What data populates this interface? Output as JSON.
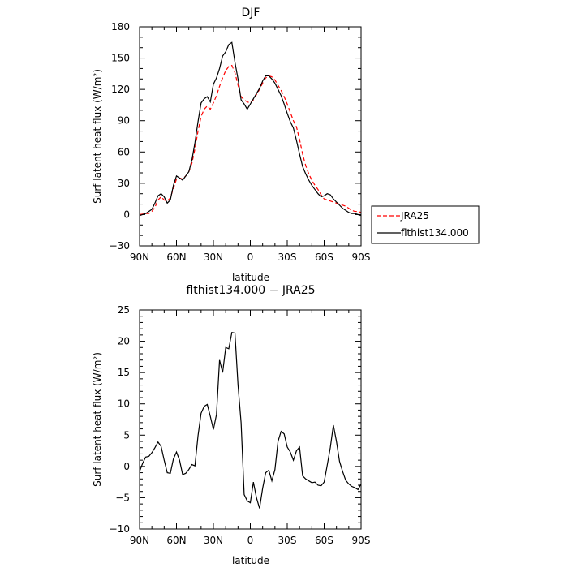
{
  "chart_data": [
    {
      "type": "line",
      "title": "DJF",
      "xlabel": "latitude",
      "ylabel": "Surf latent heat flux (W/m²)",
      "xlim": [
        90,
        -90
      ],
      "ylim": [
        -30,
        180
      ],
      "xticks": [
        90,
        60,
        30,
        0,
        -30,
        -60,
        -90
      ],
      "xticklabels": [
        "90N",
        "60N",
        "30N",
        "0",
        "30S",
        "60S",
        "90S"
      ],
      "yticks": [
        -30,
        0,
        30,
        60,
        90,
        120,
        150,
        180
      ],
      "yticklabels": [
        "−30",
        "0",
        "30",
        "60",
        "90",
        "120",
        "150",
        "180"
      ],
      "legend_position": "right",
      "series": [
        {
          "name": "JRA25",
          "color": "#ff0000",
          "style": "dashed",
          "x": [
            90,
            87.5,
            85,
            82.5,
            80,
            77.5,
            75,
            72.5,
            70,
            67.5,
            65,
            62.5,
            60,
            57.5,
            55,
            52.5,
            50,
            47.5,
            45,
            42.5,
            40,
            37.5,
            35,
            32.5,
            30,
            27.5,
            25,
            22.5,
            20,
            17.5,
            15,
            12.5,
            10,
            7.5,
            5,
            2.5,
            0,
            -2.5,
            -5,
            -7.5,
            -10,
            -12.5,
            -15,
            -17.5,
            -20,
            -22.5,
            -25,
            -27.5,
            -30,
            -32.5,
            -35,
            -37.5,
            -40,
            -42.5,
            -45,
            -47.5,
            -50,
            -52.5,
            -55,
            -57.5,
            -60,
            -62.5,
            -65,
            -67.5,
            -70,
            -72.5,
            -75,
            -77.5,
            -80,
            -82.5,
            -85,
            -87.5,
            -90
          ],
          "y": [
            0,
            0.5,
            1,
            1,
            3,
            7,
            14,
            17,
            14,
            13,
            16,
            25,
            34,
            35,
            34,
            37,
            41,
            49,
            63,
            80,
            94,
            101,
            104,
            101,
            107,
            114,
            123,
            131,
            138,
            142,
            143,
            136,
            124,
            113,
            110,
            108,
            107,
            110,
            115,
            120,
            126,
            131,
            133,
            132,
            129,
            124,
            119,
            113,
            106,
            98,
            90,
            84,
            72,
            58,
            47,
            39,
            33,
            28,
            24,
            19,
            15,
            14,
            13,
            12,
            11,
            10,
            9,
            8,
            6,
            4,
            3,
            3,
            2
          ]
        },
        {
          "name": "flthist134.000",
          "color": "#000000",
          "style": "solid",
          "x": [
            90,
            87.5,
            85,
            82.5,
            80,
            77.5,
            75,
            72.5,
            70,
            67.5,
            65,
            62.5,
            60,
            57.5,
            55,
            52.5,
            50,
            47.5,
            45,
            42.5,
            40,
            37.5,
            35,
            32.5,
            30,
            27.5,
            25,
            22.5,
            20,
            17.5,
            15,
            12.5,
            10,
            7.5,
            5,
            2.5,
            0,
            -2.5,
            -5,
            -7.5,
            -10,
            -12.5,
            -15,
            -17.5,
            -20,
            -22.5,
            -25,
            -27.5,
            -30,
            -32.5,
            -35,
            -37.5,
            -40,
            -42.5,
            -45,
            -47.5,
            -50,
            -52.5,
            -55,
            -57.5,
            -60,
            -62.5,
            -65,
            -67.5,
            -70,
            -72.5,
            -75,
            -77.5,
            -80,
            -82.5,
            -85,
            -87.5,
            -90
          ],
          "y": [
            -1,
            0,
            1,
            3,
            5,
            11,
            18,
            20,
            17,
            11,
            14,
            28,
            37,
            35,
            33,
            37,
            41,
            52,
            69,
            89,
            107,
            111,
            113,
            108,
            125,
            131,
            140,
            152,
            156,
            163,
            165,
            146,
            130,
            110,
            106,
            101,
            106,
            111,
            116,
            121,
            128,
            133,
            133,
            130,
            126,
            120,
            114,
            106,
            97,
            89,
            83,
            71,
            58,
            46,
            39,
            33,
            28,
            24,
            20,
            17,
            18,
            20,
            19,
            15,
            12,
            9,
            6,
            4,
            2,
            1,
            1,
            0,
            -1
          ]
        }
      ]
    },
    {
      "type": "line",
      "title": "flthist134.000 − JRA25",
      "xlabel": "latitude",
      "ylabel": "Surf latent heat flux (W/m²)",
      "xlim": [
        90,
        -90
      ],
      "ylim": [
        -10,
        25
      ],
      "xticks": [
        90,
        60,
        30,
        0,
        -30,
        -60,
        -90
      ],
      "xticklabels": [
        "90N",
        "60N",
        "30N",
        "0",
        "30S",
        "60S",
        "90S"
      ],
      "yticks": [
        -10,
        -5,
        0,
        5,
        10,
        15,
        20,
        25
      ],
      "yticklabels": [
        "−10",
        "−5",
        "0",
        "5",
        "10",
        "15",
        "20",
        "25"
      ],
      "series": [
        {
          "color": "#000000",
          "style": "solid",
          "x": [
            90,
            87.5,
            85,
            82.5,
            80,
            77.5,
            75,
            72.5,
            70,
            67.5,
            65,
            62.5,
            60,
            57.5,
            55,
            52.5,
            50,
            47.5,
            45,
            42.5,
            40,
            37.5,
            35,
            32.5,
            30,
            27.5,
            25,
            22.5,
            20,
            17.5,
            15,
            12.5,
            10,
            7.5,
            5,
            2.5,
            0,
            -2.5,
            -5,
            -7.5,
            -10,
            -12.5,
            -15,
            -17.5,
            -20,
            -22.5,
            -25,
            -27.5,
            -30,
            -32.5,
            -35,
            -37.5,
            -40,
            -42.5,
            -45,
            -47.5,
            -50,
            -52.5,
            -55,
            -57.5,
            -60,
            -62.5,
            -65,
            -67.5,
            -70,
            -72.5,
            -75,
            -77.5,
            -80,
            -82.5,
            -85,
            -87.5,
            -90
          ],
          "y": [
            -0.8,
            0.5,
            1.5,
            1.6,
            2.2,
            3,
            3.9,
            3.2,
            1.0,
            -1.0,
            -1.1,
            1.2,
            2.3,
            1.0,
            -1.3,
            -1.1,
            -0.5,
            0.3,
            0.1,
            4.9,
            8.5,
            9.6,
            9.9,
            8.0,
            5.9,
            8.3,
            17.0,
            15.0,
            19.0,
            18.8,
            21.4,
            21.3,
            13.0,
            7.0,
            -4.5,
            -5.5,
            -5.8,
            -2.5,
            -5.0,
            -6.7,
            -3.5,
            -1.0,
            -0.6,
            -2.3,
            -0.5,
            4.0,
            5.6,
            5.2,
            3.1,
            2.3,
            1.0,
            2.5,
            3.1,
            -1.5,
            -2.0,
            -2.3,
            -2.6,
            -2.5,
            -3.0,
            -3.1,
            -2.5,
            0.2,
            3.0,
            6.6,
            4.0,
            0.8,
            -0.8,
            -2.2,
            -2.8,
            -3.2,
            -3.4,
            -3.7,
            -2.8
          ]
        }
      ]
    }
  ]
}
